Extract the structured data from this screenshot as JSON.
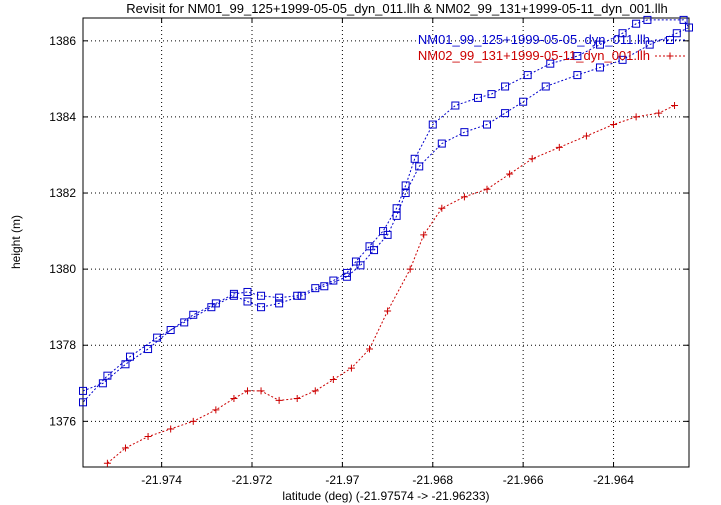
{
  "chart_data": {
    "type": "line",
    "title": "Revisit for NM01_99_125+1999-05-05_dyn_011.llh & NM02_99_131+1999-05-11_dyn_001.llh",
    "xlabel": "latitude (deg) (-21.97574 -> -21.96233)",
    "ylabel": "height (m)",
    "xlim": [
      -21.97574,
      -21.96233
    ],
    "ylim": [
      1374.8,
      1386.6
    ],
    "xticks": [
      -21.974,
      -21.972,
      -21.97,
      -21.968,
      -21.966,
      -21.964
    ],
    "xtick_labels": [
      "-21.974",
      "-21.972",
      "-21.97",
      "-21.968",
      "-21.966",
      "-21.964"
    ],
    "yticks": [
      1376,
      1378,
      1380,
      1382,
      1384,
      1386
    ],
    "ytick_labels": [
      "1376",
      "1378",
      "1380",
      "1382",
      "1384",
      "1386"
    ],
    "grid": true,
    "legend_position": "top-right",
    "series": [
      {
        "name": "NM01_99_125+1999-05-05_dyn_011.llh",
        "color": "#0000cc",
        "marker": "square",
        "x": [
          -21.97574,
          -21.9753,
          -21.9748,
          -21.9743,
          -21.9738,
          -21.9733,
          -21.9728,
          -21.9724,
          -21.9721,
          -21.9718,
          -21.9714,
          -21.971,
          -21.9706,
          -21.9702,
          -21.9699,
          -21.9697,
          -21.9694,
          -21.9691,
          -21.9688,
          -21.9686,
          -21.9684,
          -21.968,
          -21.9675,
          -21.967,
          -21.9667,
          -21.9664,
          -21.9659,
          -21.9654,
          -21.9648,
          -21.9643,
          -21.9638,
          -21.9635,
          -21.96325,
          -21.96245,
          -21.96233,
          -21.9626,
          -21.9632,
          -21.9638,
          -21.9643,
          -21.9648,
          -21.9655,
          -21.966,
          -21.9664,
          -21.9668,
          -21.9673,
          -21.9678,
          -21.9683,
          -21.9686,
          -21.9688,
          -21.969,
          -21.9693,
          -21.9696,
          -21.9699,
          -21.9704,
          -21.9709,
          -21.9714,
          -21.9718,
          -21.9721,
          -21.9724,
          -21.9729,
          -21.9735,
          -21.9741,
          -21.9747,
          -21.9752,
          -21.97574
        ],
        "y": [
          1376.8,
          1377.0,
          1377.5,
          1377.9,
          1378.4,
          1378.8,
          1379.1,
          1379.35,
          1379.4,
          1379.3,
          1379.25,
          1379.3,
          1379.5,
          1379.7,
          1379.9,
          1380.2,
          1380.6,
          1381.0,
          1381.6,
          1382.2,
          1382.9,
          1383.8,
          1384.3,
          1384.5,
          1384.6,
          1384.8,
          1385.1,
          1385.4,
          1385.6,
          1385.9,
          1386.2,
          1386.45,
          1386.55,
          1386.55,
          1386.35,
          1386.2,
          1385.9,
          1385.5,
          1385.3,
          1385.1,
          1384.8,
          1384.4,
          1384.1,
          1383.8,
          1383.6,
          1383.3,
          1382.7,
          1382.0,
          1381.4,
          1380.9,
          1380.5,
          1380.1,
          1379.8,
          1379.55,
          1379.3,
          1379.1,
          1379.0,
          1379.15,
          1379.3,
          1379.0,
          1378.6,
          1378.2,
          1377.7,
          1377.2,
          1376.5
        ]
      },
      {
        "name": "NM02_99_131+1999-05-11_dyn_001.llh",
        "color": "#cc0000",
        "marker": "plus",
        "x": [
          -21.9752,
          -21.9748,
          -21.9743,
          -21.9738,
          -21.9733,
          -21.9728,
          -21.9724,
          -21.9721,
          -21.9718,
          -21.9714,
          -21.971,
          -21.9706,
          -21.9702,
          -21.9698,
          -21.9694,
          -21.969,
          -21.9685,
          -21.9682,
          -21.9678,
          -21.9673,
          -21.9668,
          -21.9663,
          -21.9658,
          -21.9652,
          -21.9646,
          -21.964,
          -21.9635,
          -21.963,
          -21.96265
        ],
        "y": [
          1374.9,
          1375.3,
          1375.6,
          1375.8,
          1376.0,
          1376.3,
          1376.6,
          1376.8,
          1376.8,
          1376.55,
          1376.6,
          1376.8,
          1377.1,
          1377.4,
          1377.9,
          1378.9,
          1380.0,
          1380.9,
          1381.6,
          1381.9,
          1382.1,
          1382.5,
          1382.9,
          1383.2,
          1383.5,
          1383.8,
          1384.0,
          1384.1,
          1384.3
        ]
      }
    ]
  }
}
